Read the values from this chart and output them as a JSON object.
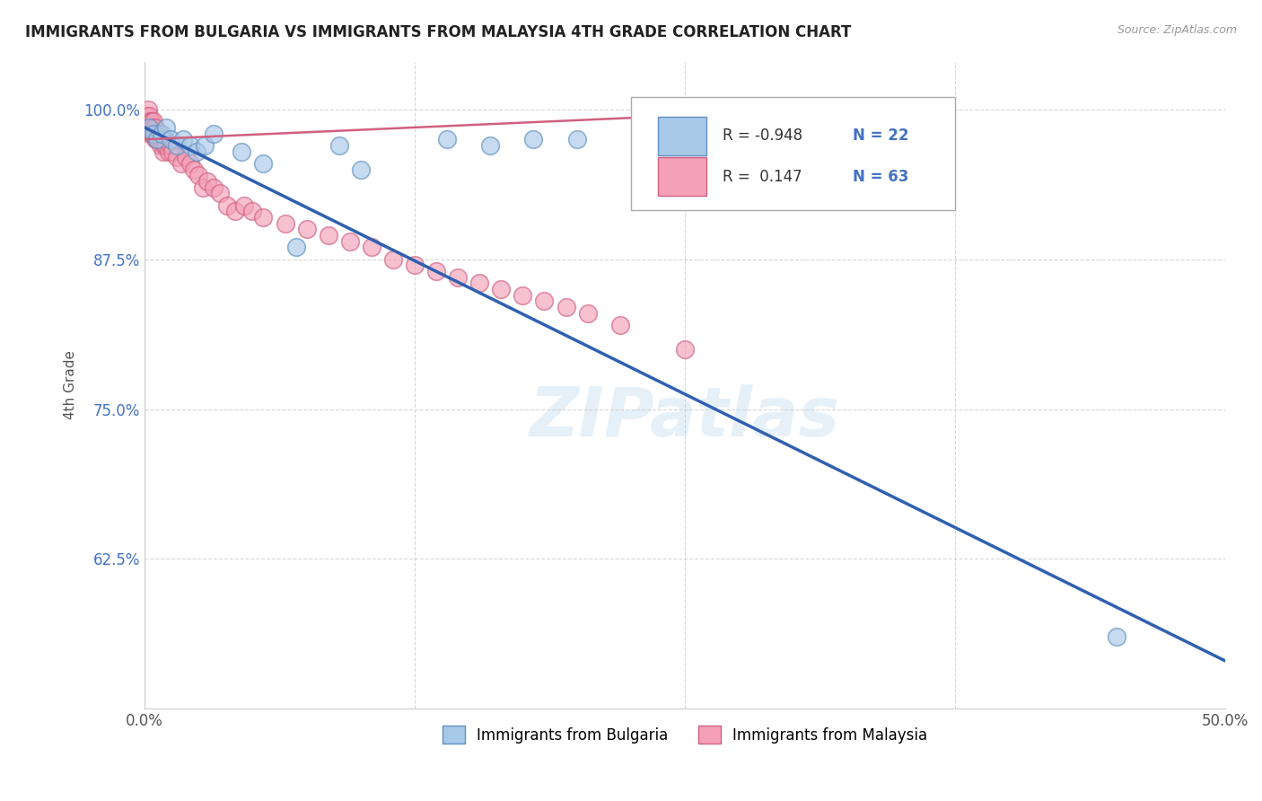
{
  "title": "IMMIGRANTS FROM BULGARIA VS IMMIGRANTS FROM MALAYSIA 4TH GRADE CORRELATION CHART",
  "source_text": "Source: ZipAtlas.com",
  "ylabel": "4th Grade",
  "xlim": [
    0.0,
    50.0
  ],
  "ylim": [
    50.0,
    104.0
  ],
  "yticks": [
    62.5,
    75.0,
    87.5,
    100.0
  ],
  "ytick_labels": [
    "62.5%",
    "75.0%",
    "87.5%",
    "100.0%"
  ],
  "xticks": [
    0.0,
    12.5,
    25.0,
    37.5,
    50.0
  ],
  "xtick_labels": [
    "0.0%",
    "",
    "",
    "",
    "50.0%"
  ],
  "background_color": "#ffffff",
  "grid_color": "#cccccc",
  "legend_R_bulgaria": "-0.948",
  "legend_N_bulgaria": "22",
  "legend_R_malaysia": "0.147",
  "legend_N_malaysia": "63",
  "blue_color": "#a8c8e8",
  "pink_color": "#f4a0b8",
  "blue_edge_color": "#6090c0",
  "pink_edge_color": "#d06080",
  "blue_line_color": "#3060b0",
  "pink_line_color": "#d06080",
  "watermark": "ZIPatlas",
  "blue_scatter_x": [
    0.2,
    0.4,
    0.6,
    0.8,
    1.0,
    1.2,
    1.5,
    1.8,
    2.1,
    2.4,
    2.8,
    3.2,
    4.5,
    5.5,
    7.0,
    9.0,
    10.0,
    14.0,
    16.0,
    18.0,
    20.0,
    45.0
  ],
  "blue_scatter_y": [
    98.5,
    98.0,
    97.5,
    98.0,
    98.5,
    97.5,
    97.0,
    97.5,
    97.0,
    96.5,
    97.0,
    98.0,
    96.5,
    95.5,
    88.5,
    97.0,
    95.0,
    97.5,
    97.0,
    97.5,
    97.5,
    56.0
  ],
  "pink_scatter_x": [
    0.05,
    0.1,
    0.12,
    0.15,
    0.18,
    0.2,
    0.22,
    0.25,
    0.28,
    0.3,
    0.32,
    0.35,
    0.38,
    0.4,
    0.42,
    0.45,
    0.48,
    0.5,
    0.55,
    0.6,
    0.65,
    0.7,
    0.75,
    0.8,
    0.85,
    0.9,
    0.95,
    1.0,
    1.1,
    1.2,
    1.3,
    1.5,
    1.7,
    1.9,
    2.1,
    2.3,
    2.5,
    2.7,
    2.9,
    3.2,
    3.5,
    3.8,
    4.2,
    4.6,
    5.0,
    5.5,
    6.5,
    7.5,
    8.5,
    9.5,
    10.5,
    11.5,
    12.5,
    13.5,
    14.5,
    15.5,
    16.5,
    17.5,
    18.5,
    19.5,
    20.5,
    22.0,
    25.0
  ],
  "pink_scatter_y": [
    99.0,
    99.5,
    98.5,
    100.0,
    99.0,
    98.5,
    99.5,
    98.0,
    99.0,
    98.5,
    99.0,
    98.5,
    98.0,
    99.0,
    98.5,
    98.0,
    97.5,
    98.5,
    98.0,
    97.5,
    98.0,
    97.5,
    97.0,
    97.5,
    96.5,
    97.0,
    97.5,
    97.0,
    96.5,
    97.0,
    96.5,
    96.0,
    95.5,
    96.0,
    95.5,
    95.0,
    94.5,
    93.5,
    94.0,
    93.5,
    93.0,
    92.0,
    91.5,
    92.0,
    91.5,
    91.0,
    90.5,
    90.0,
    89.5,
    89.0,
    88.5,
    87.5,
    87.0,
    86.5,
    86.0,
    85.5,
    85.0,
    84.5,
    84.0,
    83.5,
    83.0,
    82.0,
    80.0
  ],
  "blue_line_x0": 0.0,
  "blue_line_y0": 98.5,
  "blue_line_x1": 50.0,
  "blue_line_y1": 54.0,
  "pink_line_x0": 0.0,
  "pink_line_y0": 97.5,
  "pink_line_x1": 25.0,
  "pink_line_y1": 99.5
}
